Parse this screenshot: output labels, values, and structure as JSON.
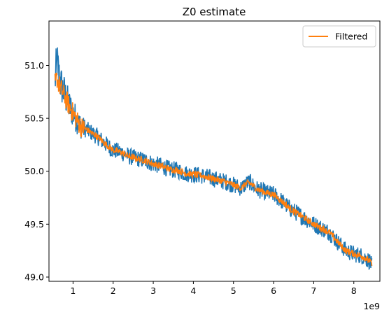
{
  "chart_data": {
    "type": "line",
    "title": "Z0 estimate",
    "xlabel": "",
    "ylabel": "",
    "x_offset_label": "1e9",
    "xlim": [
      0.4,
      8.65
    ],
    "ylim": [
      48.96,
      51.42
    ],
    "x_ticks": [
      1,
      2,
      3,
      4,
      5,
      6,
      7,
      8
    ],
    "y_ticks": [
      49.0,
      49.5,
      50.0,
      50.5,
      51.0
    ],
    "y_tick_labels": [
      "49.0",
      "49.5",
      "50.0",
      "50.5",
      "51.0"
    ],
    "grid": false,
    "legend_placement": "top-right",
    "series": [
      {
        "name": "",
        "color": "#1f77b4",
        "x": [
          0.55,
          0.6,
          0.65,
          0.7,
          0.8,
          0.9,
          1.0,
          1.1,
          1.2,
          1.4,
          1.6,
          1.8,
          2.0,
          2.2,
          2.4,
          2.6,
          2.8,
          3.0,
          3.2,
          3.4,
          3.6,
          3.8,
          4.0,
          4.2,
          4.4,
          4.6,
          4.8,
          5.0,
          5.2,
          5.3,
          5.4,
          5.5,
          5.6,
          5.8,
          6.0,
          6.2,
          6.4,
          6.6,
          6.8,
          7.0,
          7.2,
          7.4,
          7.6,
          7.8,
          8.0,
          8.2,
          8.4,
          8.45
        ],
        "values": [
          50.85,
          51.05,
          50.9,
          50.82,
          50.72,
          50.62,
          50.55,
          50.48,
          50.42,
          50.38,
          50.33,
          50.26,
          50.2,
          50.18,
          50.14,
          50.12,
          50.1,
          50.07,
          50.05,
          50.02,
          50.01,
          49.98,
          49.97,
          49.96,
          49.94,
          49.92,
          49.9,
          49.87,
          49.84,
          49.88,
          49.9,
          49.86,
          49.83,
          49.8,
          49.78,
          49.72,
          49.65,
          49.6,
          49.55,
          49.5,
          49.46,
          49.42,
          49.33,
          49.25,
          49.22,
          49.2,
          49.15,
          49.1
        ]
      },
      {
        "name": "Filtered",
        "color": "#ff7f0e",
        "x": [
          0.55,
          0.6,
          0.65,
          0.7,
          0.8,
          0.9,
          1.0,
          1.1,
          1.2,
          1.4,
          1.6,
          1.8,
          2.0,
          2.2,
          2.4,
          2.6,
          2.8,
          3.0,
          3.2,
          3.4,
          3.6,
          3.8,
          4.0,
          4.2,
          4.4,
          4.6,
          4.8,
          5.0,
          5.2,
          5.3,
          5.4,
          5.5,
          5.6,
          5.8,
          6.0,
          6.2,
          6.4,
          6.6,
          6.8,
          7.0,
          7.2,
          7.4,
          7.6,
          7.8,
          8.0,
          8.2,
          8.4,
          8.45
        ],
        "values": [
          50.83,
          50.88,
          50.82,
          50.78,
          50.7,
          50.62,
          50.55,
          50.48,
          50.42,
          50.38,
          50.33,
          50.26,
          50.2,
          50.18,
          50.14,
          50.12,
          50.1,
          50.07,
          50.05,
          50.02,
          50.01,
          49.98,
          49.97,
          49.96,
          49.94,
          49.92,
          49.9,
          49.87,
          49.84,
          49.88,
          49.89,
          49.86,
          49.83,
          49.8,
          49.78,
          49.72,
          49.65,
          49.6,
          49.55,
          49.5,
          49.46,
          49.42,
          49.33,
          49.25,
          49.22,
          49.2,
          49.15,
          49.12
        ]
      }
    ],
    "noise_amplitude": 0.09
  }
}
